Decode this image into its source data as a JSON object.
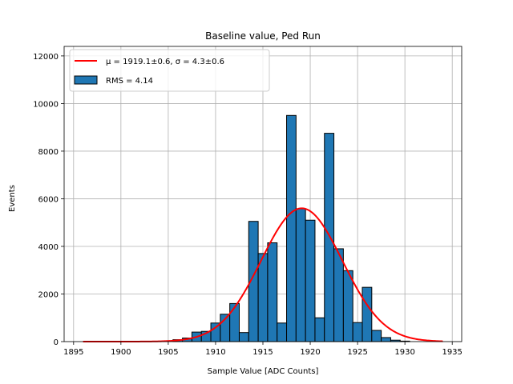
{
  "chart_data": {
    "type": "bar",
    "title": "Baseline value, Ped Run",
    "xlabel": "Sample Value [ADC Counts]",
    "ylabel": "Events",
    "xlim": [
      1894,
      1936
    ],
    "ylim": [
      0,
      12400
    ],
    "xticks": [
      1895,
      1900,
      1905,
      1910,
      1915,
      1920,
      1925,
      1930,
      1935
    ],
    "yticks": [
      0,
      2000,
      4000,
      6000,
      8000,
      10000,
      12000
    ],
    "grid": true,
    "legend_position": "top-left",
    "bin_width": 1,
    "bins": [
      {
        "x": 1906,
        "value": 80
      },
      {
        "x": 1907,
        "value": 150
      },
      {
        "x": 1908,
        "value": 400
      },
      {
        "x": 1909,
        "value": 430
      },
      {
        "x": 1910,
        "value": 780
      },
      {
        "x": 1911,
        "value": 1150
      },
      {
        "x": 1912,
        "value": 1600
      },
      {
        "x": 1913,
        "value": 380
      },
      {
        "x": 1914,
        "value": 5050
      },
      {
        "x": 1915,
        "value": 3700
      },
      {
        "x": 1916,
        "value": 4150
      },
      {
        "x": 1917,
        "value": 780
      },
      {
        "x": 1918,
        "value": 9500
      },
      {
        "x": 1919,
        "value": 5580
      },
      {
        "x": 1920,
        "value": 5100
      },
      {
        "x": 1921,
        "value": 1000
      },
      {
        "x": 1922,
        "value": 8750
      },
      {
        "x": 1923,
        "value": 3900
      },
      {
        "x": 1924,
        "value": 2980
      },
      {
        "x": 1925,
        "value": 800
      },
      {
        "x": 1926,
        "value": 2280
      },
      {
        "x": 1927,
        "value": 470
      },
      {
        "x": 1928,
        "value": 170
      },
      {
        "x": 1929,
        "value": 60
      },
      {
        "x": 1930,
        "value": 20
      }
    ],
    "fit": {
      "type": "gaussian",
      "mu": 1919.1,
      "sigma": 4.3,
      "amplitude": 5600,
      "x_range": [
        1896,
        1934
      ]
    },
    "legend": [
      {
        "label": "μ = 1919.1±0.6, σ = 4.3±0.6",
        "kind": "line",
        "color": "#ff0000"
      },
      {
        "label": "RMS = 4.14",
        "kind": "patch",
        "color": "#1f77b4"
      }
    ],
    "colors": {
      "bar_fill": "#1f77b4",
      "fit_line": "#ff0000",
      "grid": "#b0b0b0"
    }
  }
}
